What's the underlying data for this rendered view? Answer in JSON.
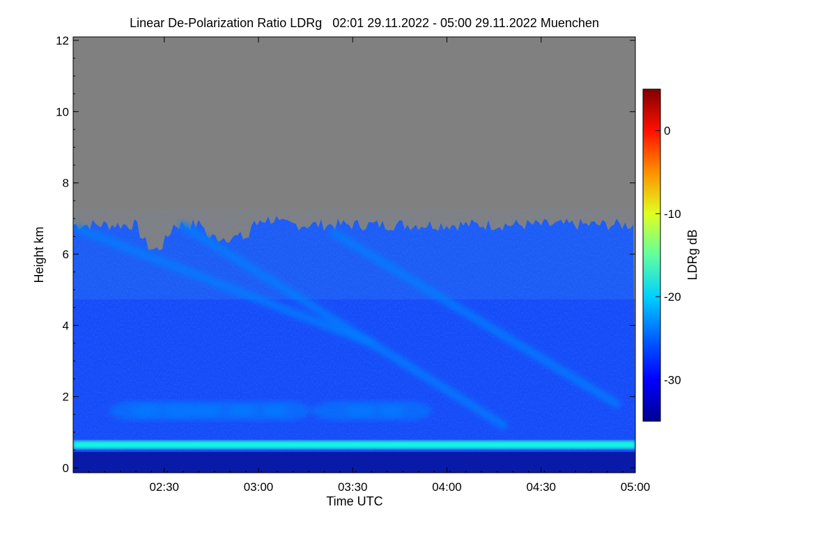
{
  "chart_data": {
    "type": "heatmap",
    "title": "Linear De-Polarization Ratio LDRg   02:01 29.11.2022 - 05:00 29.11.2022 Muenchen",
    "xlabel": "Time UTC",
    "ylabel": "Height km",
    "colorbar_label": "LDRg dB",
    "x_range_hours": [
      2.0167,
      5.0
    ],
    "y_range_km": [
      0,
      12.3
    ],
    "x_ticks": [
      {
        "value": 2.5,
        "label": "02:30"
      },
      {
        "value": 3.0,
        "label": "03:00"
      },
      {
        "value": 3.5,
        "label": "03:30"
      },
      {
        "value": 4.0,
        "label": "04:00"
      },
      {
        "value": 4.5,
        "label": "04:30"
      },
      {
        "value": 5.0,
        "label": "05:00"
      }
    ],
    "y_ticks": [
      {
        "value": 0,
        "label": "0"
      },
      {
        "value": 2,
        "label": "2"
      },
      {
        "value": 4,
        "label": "4"
      },
      {
        "value": 6,
        "label": "6"
      },
      {
        "value": 8,
        "label": "8"
      },
      {
        "value": 10,
        "label": "10"
      },
      {
        "value": 12,
        "label": "12"
      }
    ],
    "colorbar_range_db": [
      -35,
      5
    ],
    "colorbar_ticks": [
      {
        "value": 0,
        "label": "0"
      },
      {
        "value": -10,
        "label": "-10"
      },
      {
        "value": -20,
        "label": "-20"
      },
      {
        "value": -30,
        "label": "-30"
      }
    ],
    "colormap": [
      "#00008f",
      "#0000ff",
      "#0080ff",
      "#00ffff",
      "#80ff80",
      "#ffff00",
      "#ff8000",
      "#ff0000",
      "#800000"
    ],
    "no_data_color": "#808080",
    "background_ldr_db": -28,
    "cloud_top_km": 7.0,
    "features": [
      {
        "name": "boundary-layer-band",
        "height_km": 0.65,
        "ldr_db": -19
      },
      {
        "name": "aerosol-layer",
        "height_km": 1.6,
        "ldr_db": -25
      },
      {
        "name": "fall-streak-1",
        "t_start": 2.05,
        "h_start": 6.7,
        "t_end": 3.6,
        "h_end": 3.5,
        "ldr_db": -25
      },
      {
        "name": "fall-streak-2",
        "t_start": 2.6,
        "h_start": 6.8,
        "t_end": 4.3,
        "h_end": 1.2,
        "ldr_db": -23
      },
      {
        "name": "fall-streak-3",
        "t_start": 3.4,
        "h_start": 6.6,
        "t_end": 4.9,
        "h_end": 1.8,
        "ldr_db": -27
      }
    ]
  }
}
